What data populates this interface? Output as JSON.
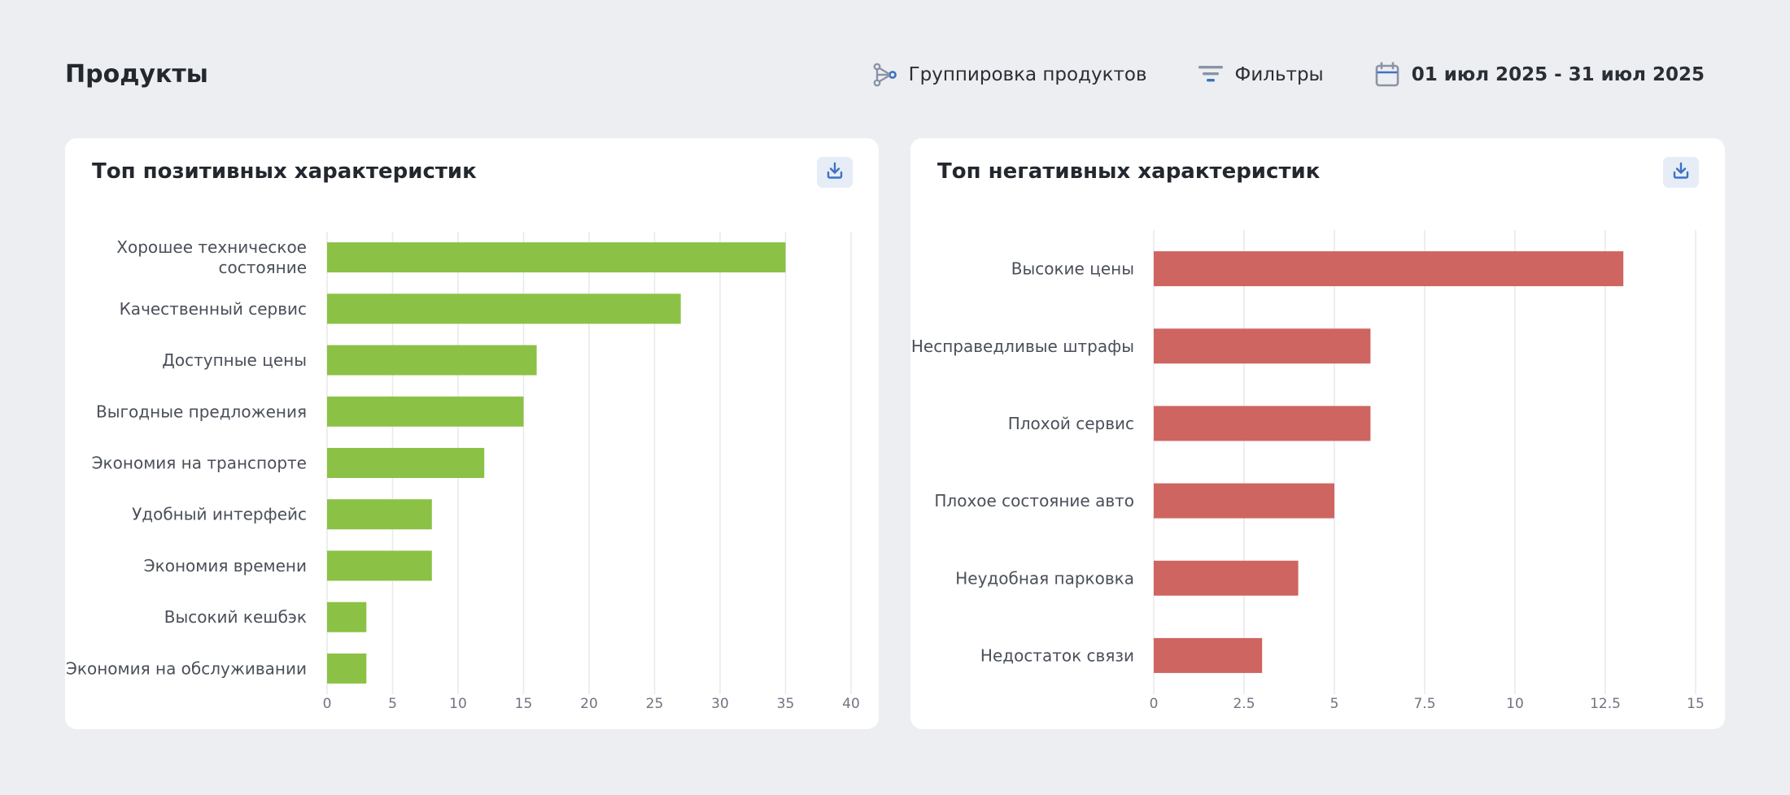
{
  "header": {
    "title": "Продукты",
    "grouping_label": "Группировка продуктов",
    "filters_label": "Фильтры",
    "date_range": "01 июл 2025 - 31 июл 2025"
  },
  "colors": {
    "positive": "#8bc145",
    "negative": "#cf6560",
    "accent": "#3d72c4",
    "grid": "#e8e9ec"
  },
  "icons": {
    "grouping": "grouping-icon",
    "filters": "filter-icon",
    "calendar": "calendar-icon",
    "download": "download-icon"
  },
  "chart_data": [
    {
      "type": "bar",
      "orientation": "horizontal",
      "title": "Топ позитивных характеристик",
      "categories": [
        [
          "Хорошее техническое",
          "состояние"
        ],
        [
          "Качественный сервис"
        ],
        [
          "Доступные цены"
        ],
        [
          "Выгодные предложения"
        ],
        [
          "Экономия на транспорте"
        ],
        [
          "Удобный интерфейс"
        ],
        [
          "Экономия времени"
        ],
        [
          "Высокий кешбэк"
        ],
        [
          "Экономия на обслуживании"
        ]
      ],
      "values": [
        35,
        27,
        16,
        15,
        12,
        8,
        8,
        3,
        3
      ],
      "xlim": [
        0,
        40
      ],
      "xticks": [
        "0",
        "5",
        "10",
        "15",
        "20",
        "25",
        "30",
        "35",
        "40"
      ],
      "grid": true,
      "color": "#8bc145"
    },
    {
      "type": "bar",
      "orientation": "horizontal",
      "title": "Топ негативных характеристик",
      "categories": [
        [
          "Высокие цены"
        ],
        [
          "Несправедливые штрафы"
        ],
        [
          "Плохой сервис"
        ],
        [
          "Плохое состояние авто"
        ],
        [
          "Неудобная парковка"
        ],
        [
          "Недостаток связи"
        ]
      ],
      "values": [
        13,
        6,
        6,
        5,
        4,
        3
      ],
      "xlim": [
        0,
        15
      ],
      "xticks": [
        "0",
        "2.5",
        "5",
        "7.5",
        "10",
        "12.5",
        "15"
      ],
      "grid": true,
      "color": "#cf6560"
    }
  ]
}
